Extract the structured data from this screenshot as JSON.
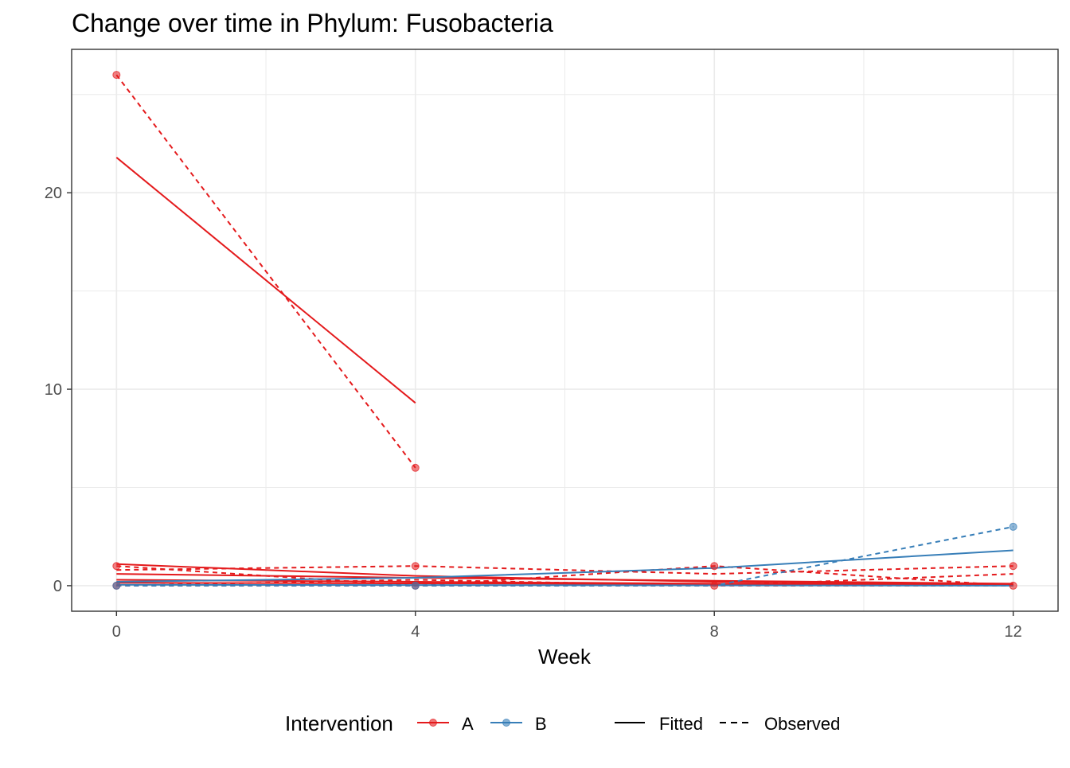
{
  "chart_data": {
    "type": "line",
    "title": "Change over time in Phylum: Fusobacteria",
    "xlabel": "Week",
    "ylabel": "",
    "xlim": [
      -0.6,
      12.6
    ],
    "ylim": [
      -1.3,
      27.3
    ],
    "x_ticks": [
      0,
      4,
      8,
      12
    ],
    "y_ticks": [
      0,
      10,
      20
    ],
    "x_minor": [
      2,
      6,
      10
    ],
    "y_minor": [
      5,
      15,
      25
    ],
    "grid": true,
    "colors": {
      "A": "#E41A1C",
      "B": "#377EB8"
    },
    "series": [
      {
        "name": "A",
        "kind": "Observed",
        "x": [
          0,
          4
        ],
        "y": [
          26,
          6
        ]
      },
      {
        "name": "A",
        "kind": "Fitted",
        "x": [
          0,
          4
        ],
        "y": [
          21.8,
          9.3
        ]
      },
      {
        "name": "A",
        "kind": "Observed",
        "x": [
          0,
          4,
          8,
          12
        ],
        "y": [
          0.8,
          1.0,
          0.6,
          1.0
        ]
      },
      {
        "name": "A",
        "kind": "Fitted",
        "x": [
          0,
          4,
          8,
          12
        ],
        "y": [
          1.1,
          0.5,
          0.2,
          0.05
        ]
      },
      {
        "name": "A",
        "kind": "Observed",
        "x": [
          0,
          4,
          8,
          12
        ],
        "y": [
          1.0,
          0.0,
          1.0,
          0.0
        ]
      },
      {
        "name": "A",
        "kind": "Fitted",
        "x": [
          0,
          4,
          8,
          12
        ],
        "y": [
          0.6,
          0.4,
          0.25,
          0.1
        ]
      },
      {
        "name": "A",
        "kind": "Observed",
        "x": [
          0,
          4,
          8,
          12
        ],
        "y": [
          0.0,
          0.3,
          0.0,
          0.6
        ]
      },
      {
        "name": "A",
        "kind": "Fitted",
        "x": [
          0,
          4,
          8,
          12
        ],
        "y": [
          0.3,
          0.2,
          0.1,
          0.05
        ]
      },
      {
        "name": "A",
        "kind": "Observed",
        "x": [
          0,
          12
        ],
        "y": [
          0.0,
          0.0
        ]
      },
      {
        "name": "A",
        "kind": "Fitted",
        "x": [
          0,
          12
        ],
        "y": [
          0.15,
          0.05
        ]
      },
      {
        "name": "B",
        "kind": "Observed",
        "x": [
          0,
          4,
          8,
          12
        ],
        "y": [
          0.0,
          0.0,
          0.0,
          3.0
        ]
      },
      {
        "name": "B",
        "kind": "Fitted",
        "x": [
          0,
          4,
          8,
          12
        ],
        "y": [
          0.2,
          0.4,
          0.9,
          1.8
        ]
      },
      {
        "name": "B",
        "kind": "Fitted",
        "x": [
          0,
          12
        ],
        "y": [
          0.05,
          0.0
        ]
      }
    ],
    "points": [
      {
        "group": "A",
        "x": 0,
        "y": 26
      },
      {
        "group": "A",
        "x": 4,
        "y": 6
      },
      {
        "group": "A",
        "x": 0,
        "y": 1
      },
      {
        "group": "A",
        "x": 4,
        "y": 1
      },
      {
        "group": "A",
        "x": 8,
        "y": 1
      },
      {
        "group": "A",
        "x": 12,
        "y": 1
      },
      {
        "group": "A",
        "x": 0,
        "y": 0
      },
      {
        "group": "A",
        "x": 4,
        "y": 0
      },
      {
        "group": "A",
        "x": 8,
        "y": 0
      },
      {
        "group": "A",
        "x": 12,
        "y": 0
      },
      {
        "group": "B",
        "x": 0,
        "y": 0
      },
      {
        "group": "B",
        "x": 4,
        "y": 0
      },
      {
        "group": "B",
        "x": 12,
        "y": 3
      }
    ],
    "legend": {
      "placement": "bottom",
      "color_title": "Intervention",
      "color_items": [
        "A",
        "B"
      ],
      "linetype_items": [
        "Fitted",
        "Observed"
      ]
    }
  }
}
